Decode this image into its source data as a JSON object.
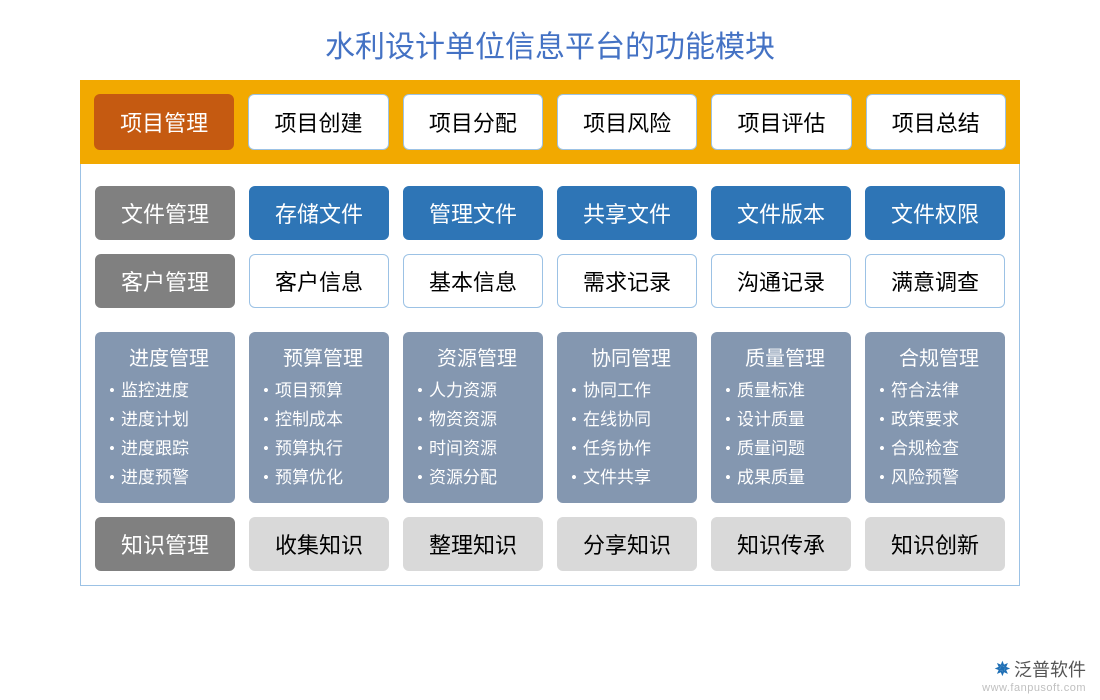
{
  "title": "水利设计单位信息平台的功能模块",
  "colors": {
    "title": "#4472c4",
    "topbar_bg": "#f2a900",
    "active_btn": "#c55a11",
    "plain_border": "#9cc2e5",
    "blue_card": "#2e75b6",
    "gray_label": "#808080",
    "gray_box": "#d9d9d9",
    "panel_bg": "#8497b0"
  },
  "topbar": {
    "active": "项目管理",
    "items": [
      "项目创建",
      "项目分配",
      "项目风险",
      "项目评估",
      "项目总结"
    ]
  },
  "row_file": {
    "label": "文件管理",
    "items": [
      "存储文件",
      "管理文件",
      "共享文件",
      "文件版本",
      "文件权限"
    ]
  },
  "row_customer": {
    "label": "客户管理",
    "items": [
      "客户信息",
      "基本信息",
      "需求记录",
      "沟通记录",
      "满意调查"
    ]
  },
  "panels": [
    {
      "title": "进度管理",
      "items": [
        "监控进度",
        "进度计划",
        "进度跟踪",
        "进度预警"
      ]
    },
    {
      "title": "预算管理",
      "items": [
        "项目预算",
        "控制成本",
        "预算执行",
        "预算优化"
      ]
    },
    {
      "title": "资源管理",
      "items": [
        "人力资源",
        "物资资源",
        "时间资源",
        "资源分配"
      ]
    },
    {
      "title": "协同管理",
      "items": [
        "协同工作",
        "在线协同",
        "任务协作",
        "文件共享"
      ]
    },
    {
      "title": "质量管理",
      "items": [
        "质量标准",
        "设计质量",
        "质量问题",
        "成果质量"
      ]
    },
    {
      "title": "合规管理",
      "items": [
        "符合法律",
        "政策要求",
        "合规检查",
        "风险预警"
      ]
    }
  ],
  "row_knowledge": {
    "label": "知识管理",
    "items": [
      "收集知识",
      "整理知识",
      "分享知识",
      "知识传承",
      "知识创新"
    ]
  },
  "watermark": {
    "brand": "泛普软件",
    "url": "www.fanpusoft.com"
  }
}
